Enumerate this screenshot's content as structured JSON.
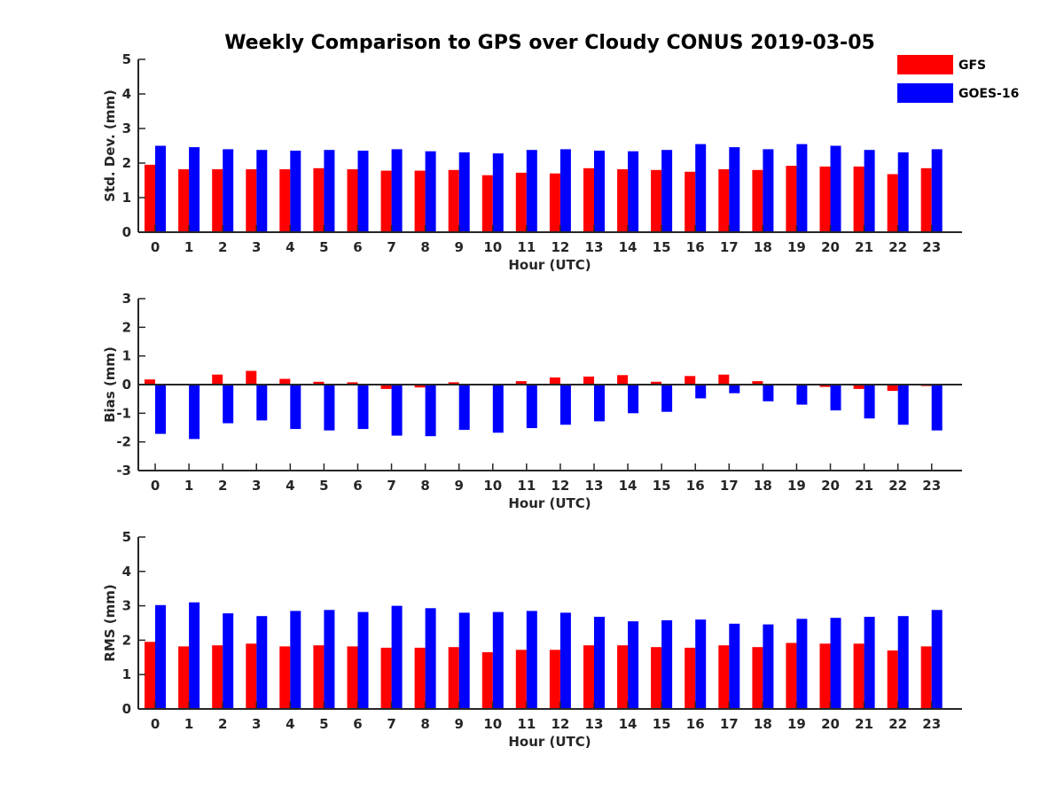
{
  "title": "Weekly Comparison to GPS over Cloudy CONUS 2019-03-05",
  "legend": [
    {
      "name": "GFS",
      "color": "#ff0000"
    },
    {
      "name": "GOES-16",
      "color": "#0000ff"
    }
  ],
  "chart_data": [
    {
      "type": "bar",
      "ylabel": "Std. Dev. (mm)",
      "xlabel": "Hour (UTC)",
      "ylim": [
        0,
        5
      ],
      "yticks": [
        0,
        1,
        2,
        3,
        4,
        5
      ],
      "categories": [
        "0",
        "1",
        "2",
        "3",
        "4",
        "5",
        "6",
        "7",
        "8",
        "9",
        "10",
        "11",
        "12",
        "13",
        "14",
        "15",
        "16",
        "17",
        "18",
        "19",
        "20",
        "21",
        "22",
        "23"
      ],
      "series": [
        {
          "name": "GFS",
          "values": [
            1.95,
            1.82,
            1.82,
            1.82,
            1.82,
            1.85,
            1.82,
            1.78,
            1.78,
            1.8,
            1.65,
            1.72,
            1.7,
            1.85,
            1.82,
            1.8,
            1.75,
            1.82,
            1.8,
            1.92,
            1.9,
            1.9,
            1.68,
            1.85
          ]
        },
        {
          "name": "GOES-16",
          "values": [
            2.5,
            2.46,
            2.4,
            2.38,
            2.36,
            2.38,
            2.36,
            2.4,
            2.34,
            2.31,
            2.28,
            2.38,
            2.4,
            2.36,
            2.34,
            2.38,
            2.55,
            2.46,
            2.4,
            2.55,
            2.5,
            2.38,
            2.31,
            2.4
          ]
        }
      ]
    },
    {
      "type": "bar",
      "ylabel": "Bias (mm)",
      "xlabel": "Hour (UTC)",
      "ylim": [
        -3,
        3
      ],
      "yticks": [
        -3,
        -2,
        -1,
        0,
        1,
        2,
        3
      ],
      "categories": [
        "0",
        "1",
        "2",
        "3",
        "4",
        "5",
        "6",
        "7",
        "8",
        "9",
        "10",
        "11",
        "12",
        "13",
        "14",
        "15",
        "16",
        "17",
        "18",
        "19",
        "20",
        "21",
        "22",
        "23"
      ],
      "series": [
        {
          "name": "GFS",
          "values": [
            0.18,
            0.02,
            0.35,
            0.48,
            0.2,
            0.1,
            0.08,
            -0.15,
            -0.1,
            0.08,
            0.0,
            0.12,
            0.25,
            0.28,
            0.33,
            0.1,
            0.3,
            0.35,
            0.12,
            0.0,
            -0.08,
            -0.15,
            -0.22,
            -0.05
          ]
        },
        {
          "name": "GOES-16",
          "values": [
            -1.72,
            -1.9,
            -1.35,
            -1.25,
            -1.55,
            -1.6,
            -1.55,
            -1.78,
            -1.8,
            -1.58,
            -1.68,
            -1.52,
            -1.4,
            -1.28,
            -1.0,
            -0.95,
            -0.48,
            -0.3,
            -0.58,
            -0.7,
            -0.9,
            -1.18,
            -1.4,
            -1.6
          ]
        }
      ]
    },
    {
      "type": "bar",
      "ylabel": "RMS (mm)",
      "xlabel": "Hour (UTC)",
      "ylim": [
        0,
        5
      ],
      "yticks": [
        0,
        1,
        2,
        3,
        4,
        5
      ],
      "categories": [
        "0",
        "1",
        "2",
        "3",
        "4",
        "5",
        "6",
        "7",
        "8",
        "9",
        "10",
        "11",
        "12",
        "13",
        "14",
        "15",
        "16",
        "17",
        "18",
        "19",
        "20",
        "21",
        "22",
        "23"
      ],
      "series": [
        {
          "name": "GFS",
          "values": [
            1.95,
            1.82,
            1.85,
            1.9,
            1.82,
            1.85,
            1.82,
            1.78,
            1.78,
            1.8,
            1.65,
            1.72,
            1.72,
            1.85,
            1.85,
            1.8,
            1.78,
            1.85,
            1.8,
            1.92,
            1.9,
            1.9,
            1.7,
            1.82
          ]
        },
        {
          "name": "GOES-16",
          "values": [
            3.02,
            3.1,
            2.78,
            2.7,
            2.85,
            2.88,
            2.82,
            3.0,
            2.93,
            2.8,
            2.82,
            2.85,
            2.8,
            2.68,
            2.55,
            2.58,
            2.6,
            2.48,
            2.46,
            2.62,
            2.65,
            2.68,
            2.7,
            2.88
          ]
        }
      ]
    }
  ]
}
